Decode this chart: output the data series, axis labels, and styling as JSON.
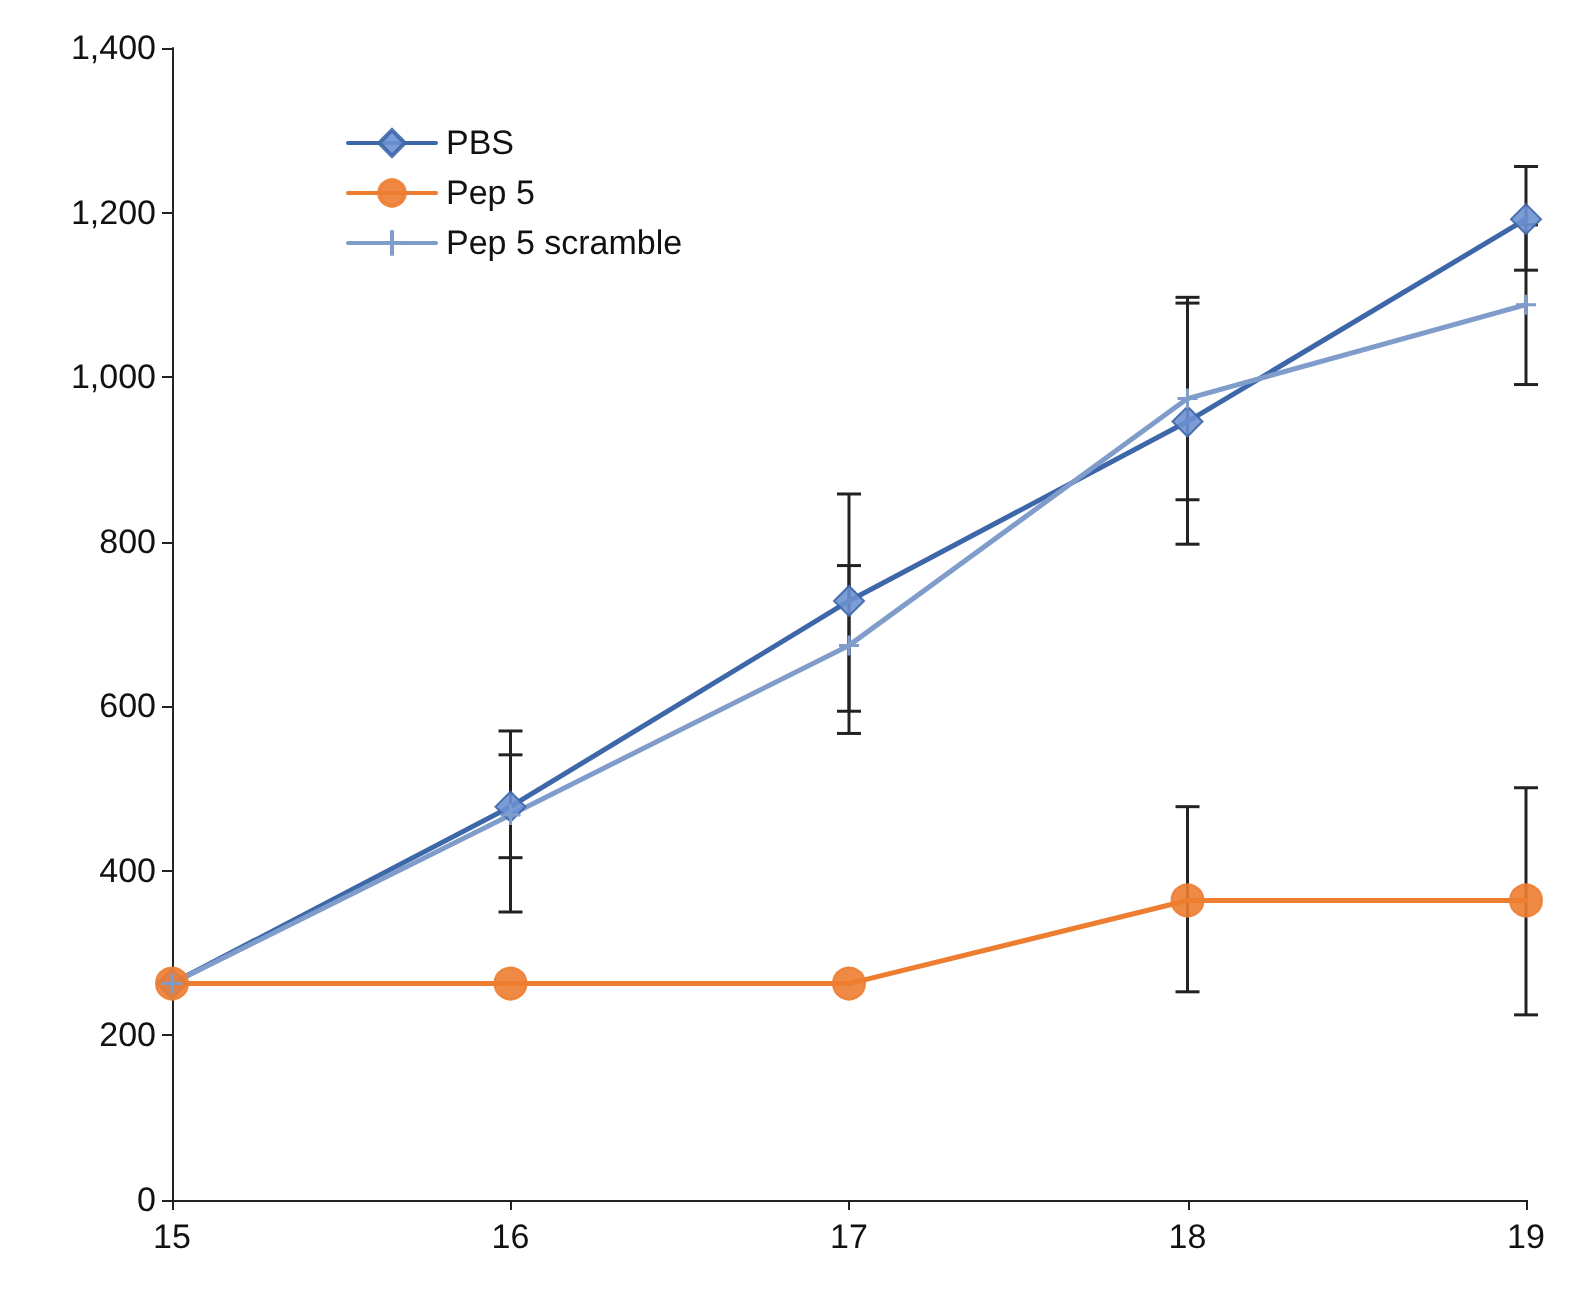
{
  "chart_data": {
    "type": "line",
    "x": [
      15,
      16,
      17,
      18,
      19
    ],
    "series": [
      {
        "name": "PBS",
        "color": "#3d67a8",
        "marker": "diamond",
        "values": [
          263,
          478,
          728,
          946,
          1192
        ],
        "errors": [
          null,
          [
            350,
            570
          ],
          [
            567,
            858
          ],
          [
            797,
            1090
          ],
          [
            1130,
            1256
          ]
        ]
      },
      {
        "name": "Pep 5",
        "color": "#ed7d31",
        "marker": "circle",
        "values": [
          263,
          263,
          263,
          364,
          364
        ],
        "errors": [
          null,
          null,
          null,
          [
            253,
            478
          ],
          [
            225,
            501
          ]
        ]
      },
      {
        "name": "Pep 5 scramble",
        "color": "#7f9ccb",
        "marker": "cross",
        "values": [
          263,
          468,
          674,
          974,
          1088
        ],
        "errors": [
          null,
          [
            416,
            541
          ],
          [
            594,
            771
          ],
          [
            851,
            1097
          ],
          [
            991,
            1185
          ]
        ]
      }
    ],
    "xlim": [
      15,
      19
    ],
    "xticks": [
      15,
      16,
      17,
      18,
      19
    ],
    "ylim": [
      0,
      1400
    ],
    "yticks": [
      0,
      200,
      400,
      600,
      800,
      {
        "value": 1000,
        "label": "1,000"
      },
      {
        "value": 1200,
        "label": "1,200"
      },
      {
        "value": 1400,
        "label": "1,400"
      }
    ],
    "grid": false,
    "legend": "top left",
    "line_style": "solid"
  }
}
